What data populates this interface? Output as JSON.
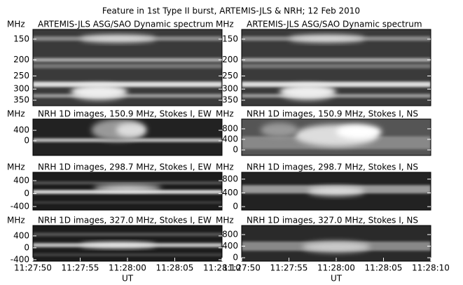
{
  "title": "Feature in 1st Type II burst, ARTEMIS-JLS & NRH; 12 Feb 2010",
  "chart_data": [
    {
      "type": "image",
      "title": "ARTEMIS-JLS ASG/SAO Dynamic spectrum",
      "ylabel": "MHz",
      "log_scale": true,
      "ylim": [
        378,
        131
      ],
      "yticks": [
        150,
        200,
        250,
        300,
        350
      ]
    },
    {
      "type": "image",
      "title": "ARTEMIS-JLS ASG/SAO Dynamic spectrum",
      "ylabel": "MHz",
      "log_scale": true,
      "ylim": [
        378,
        131
      ],
      "yticks": [
        150,
        200,
        250,
        300,
        350
      ]
    },
    {
      "type": "image",
      "title": "NRH 1D images, 150.9 MHz, Stokes I, EW",
      "ylabel": "MHz",
      "ylim": [
        -560,
        830
      ],
      "yticks": [
        0,
        400
      ]
    },
    {
      "type": "image",
      "title": "NRH 1D images, 150.9 MHz, Stokes I, NS",
      "ylabel": "MHz",
      "ylim": [
        -210,
        1170
      ],
      "yticks": [
        0,
        400,
        800
      ]
    },
    {
      "type": "image",
      "title": "NRH 1D images, 298.7 MHz, Stokes I, EW",
      "ylabel": "MHz",
      "ylim": [
        -510,
        660
      ],
      "yticks": [
        -400,
        0,
        400
      ]
    },
    {
      "type": "image",
      "title": "NRH 1D images, 298.7 MHz, Stokes I, NS",
      "ylabel": "MHz",
      "ylim": [
        -100,
        1000
      ],
      "yticks": [
        0,
        400,
        800
      ]
    },
    {
      "type": "image",
      "title": "NRH 1D images, 327.0 MHz, Stokes I, EW",
      "ylabel": "MHz",
      "ylim": [
        -450,
        750
      ],
      "yticks": [
        -400,
        0,
        400
      ],
      "xlabel": "UT",
      "xlim": [
        42470,
        42490
      ],
      "xticks": [
        {
          "value": 42470,
          "label": "11:27:50"
        },
        {
          "value": 42475,
          "label": "11:27:55"
        },
        {
          "value": 42480,
          "label": "11:28:00"
        },
        {
          "value": 42485,
          "label": "11:28:05"
        },
        {
          "value": 42490,
          "label": "11:28:10"
        }
      ]
    },
    {
      "type": "image",
      "title": "NRH 1D images, 327.0 MHz, Stokes I, NS",
      "ylabel": "MHz",
      "ylim": [
        -120,
        1115
      ],
      "yticks": [
        0,
        400,
        800
      ],
      "xlabel": "UT",
      "xlim": [
        42470,
        42490
      ],
      "xticks": [
        {
          "value": 42470,
          "label": "11:27:50"
        },
        {
          "value": 42475,
          "label": "11:27:55"
        },
        {
          "value": 42480,
          "label": "11:28:00"
        },
        {
          "value": 42485,
          "label": "11:28:05"
        },
        {
          "value": 42490,
          "label": "11:28:10"
        }
      ]
    }
  ]
}
